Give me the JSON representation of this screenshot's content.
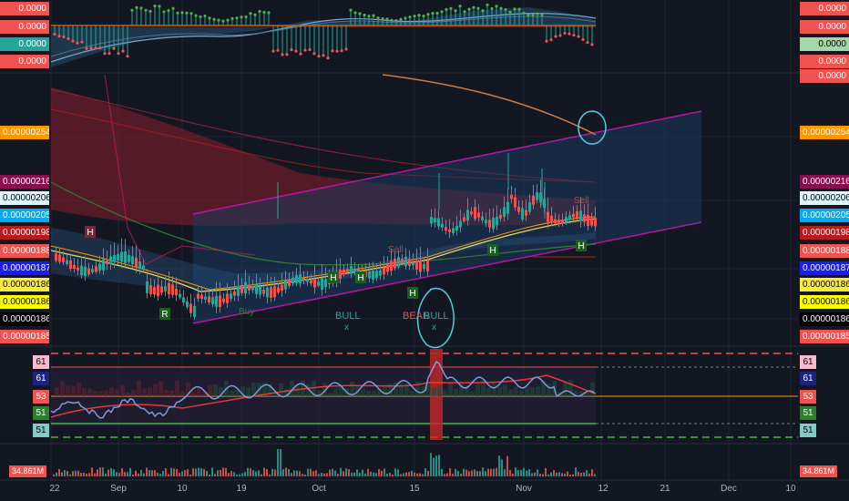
{
  "colors": {
    "bg": "#131722",
    "grid": "#1f2430",
    "up": "#26a69a",
    "down": "#ef5350",
    "channel": "#b5179e",
    "cloud_red": "#8b1d2c",
    "cloud_blue": "#1e3a5f",
    "rsi": "#7d9ad8",
    "rsi_signal": "#e53935",
    "annotation": "#4dd0e1"
  },
  "top_indicator": {
    "left_labels": [
      {
        "text": "0.0000",
        "bg": "#ef5350",
        "fg": "#ffffff"
      },
      {
        "text": "0.0000",
        "bg": "#ef5350",
        "fg": "#ffffff"
      },
      {
        "text": "0.0000",
        "bg": "#26a69a",
        "fg": "#ffffff"
      },
      {
        "text": "0.0000",
        "bg": "#ef5350",
        "fg": "#ffffff"
      }
    ],
    "right_labels": [
      {
        "text": "0.0000",
        "bg": "#ef5350",
        "fg": "#ffffff"
      },
      {
        "text": "0.0000",
        "bg": "#ef5350",
        "fg": "#ffffff"
      },
      {
        "text": "0.0000",
        "bg": "#a5d6a7",
        "fg": "#000000"
      },
      {
        "text": "0.0000",
        "bg": "#ef5350",
        "fg": "#ffffff"
      },
      {
        "text": "0.0000",
        "bg": "#ef5350",
        "fg": "#ffffff"
      }
    ]
  },
  "price_axis": {
    "left_labels": [
      {
        "text": "0.00000254",
        "bg": "#ff9800",
        "fg": "#ffffff"
      },
      {
        "text": "0.00000216",
        "bg": "#880e4f",
        "fg": "#ffffff"
      },
      {
        "text": "0.00000206",
        "bg": "#e1f5fe",
        "fg": "#000000"
      },
      {
        "text": "0.00000205",
        "bg": "#03a9f4",
        "fg": "#ffffff"
      },
      {
        "text": "0.00000198",
        "bg": "#b71c1c",
        "fg": "#ffffff"
      },
      {
        "text": "0.00000188",
        "bg": "#ef5350",
        "fg": "#ffffff"
      },
      {
        "text": "0.00000187",
        "bg": "#1a1aff",
        "fg": "#ffffff"
      },
      {
        "text": "0.00000186",
        "bg": "#ffeb3b",
        "fg": "#000000"
      },
      {
        "text": "0.00000186",
        "bg": "#ffff00",
        "fg": "#000000"
      },
      {
        "text": "0.00000186",
        "bg": "#000000",
        "fg": "#ffffff"
      },
      {
        "text": "0.00000185",
        "bg": "#ef5350",
        "fg": "#ffffff"
      }
    ],
    "right_labels": [
      {
        "text": "0.00000254",
        "bg": "#ff9800",
        "fg": "#ffffff"
      },
      {
        "text": "0.00000216",
        "bg": "#880e4f",
        "fg": "#ffffff"
      },
      {
        "text": "0.00000206",
        "bg": "#e1f5fe",
        "fg": "#000000"
      },
      {
        "text": "0.00000205",
        "bg": "#03a9f4",
        "fg": "#ffffff"
      },
      {
        "text": "0.00000198",
        "bg": "#b71c1c",
        "fg": "#ffffff"
      },
      {
        "text": "0.00000188",
        "bg": "#ef5350",
        "fg": "#ffffff"
      },
      {
        "text": "0.00000187",
        "bg": "#1a1aff",
        "fg": "#ffffff"
      },
      {
        "text": "0.00000186",
        "bg": "#ffeb3b",
        "fg": "#000000"
      },
      {
        "text": "0.00000186",
        "bg": "#ffff00",
        "fg": "#000000"
      },
      {
        "text": "0.00000186",
        "bg": "#000000",
        "fg": "#ffffff"
      },
      {
        "text": "0.00000185",
        "bg": "#ef5350",
        "fg": "#ffffff"
      }
    ]
  },
  "rsi_axis": {
    "left_labels": [
      {
        "text": "61",
        "bg": "#f8bbd0",
        "fg": "#000000"
      },
      {
        "text": "61",
        "bg": "#1a237e",
        "fg": "#ffffff"
      },
      {
        "text": "53",
        "bg": "#ef5350",
        "fg": "#ffffff"
      },
      {
        "text": "51",
        "bg": "#2e7d32",
        "fg": "#ffffff"
      },
      {
        "text": "51",
        "bg": "#80cbc4",
        "fg": "#000000"
      }
    ],
    "right_labels": [
      {
        "text": "61",
        "bg": "#f8bbd0",
        "fg": "#000000"
      },
      {
        "text": "61",
        "bg": "#1a237e",
        "fg": "#ffffff"
      },
      {
        "text": "53",
        "bg": "#ef5350",
        "fg": "#ffffff"
      },
      {
        "text": "51",
        "bg": "#2e7d32",
        "fg": "#ffffff"
      },
      {
        "text": "51",
        "bg": "#80cbc4",
        "fg": "#000000"
      }
    ]
  },
  "volume": {
    "label": "34.861M"
  },
  "time_axis": {
    "ticks": [
      "22",
      "Sep",
      "10",
      "19",
      "Oct",
      "15",
      "Nov",
      "12",
      "21",
      "Dec",
      "10"
    ]
  },
  "signals": [
    {
      "text": "H",
      "kind": "box-red"
    },
    {
      "text": "R",
      "kind": "box-green"
    },
    {
      "text": "Buy",
      "kind": "text-green"
    },
    {
      "text": "BULL",
      "kind": "text-green"
    },
    {
      "text": "x",
      "kind": "text-green"
    },
    {
      "text": "BEAR",
      "kind": "text-red"
    },
    {
      "text": "BULL",
      "kind": "text-green"
    },
    {
      "text": "x",
      "kind": "text-green"
    },
    {
      "text": "H",
      "kind": "box-green"
    },
    {
      "text": "H",
      "kind": "box-green"
    },
    {
      "text": "H",
      "kind": "box-green"
    },
    {
      "text": "H",
      "kind": "box-green"
    },
    {
      "text": "H",
      "kind": "box-green"
    },
    {
      "text": "Sell",
      "kind": "text-red"
    },
    {
      "text": "Sell",
      "kind": "text-red"
    }
  ]
}
